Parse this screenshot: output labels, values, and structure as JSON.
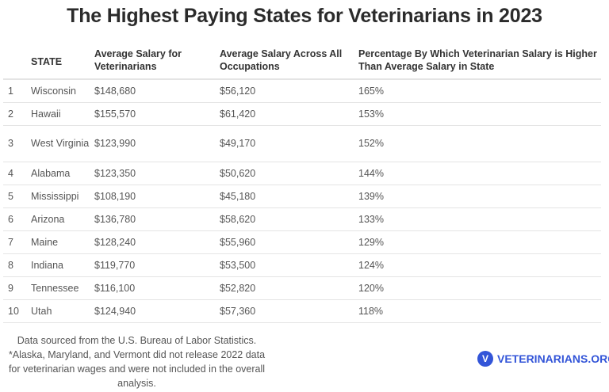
{
  "title": "The Highest Paying States for Veterinarians in 2023",
  "columns": [
    "STATE",
    "Average Salary for Veterinarians",
    "Average Salary Across All Occupations",
    "Percentage By Which Veterinarian Salary is Higher Than Average Salary in State"
  ],
  "rows": [
    {
      "rank": "1",
      "state": "Wisconsin",
      "vet": "$148,680",
      "all": "$56,120",
      "pct": "165%"
    },
    {
      "rank": "2",
      "state": "Hawaii",
      "vet": "$155,570",
      "all": "$61,420",
      "pct": "153%"
    },
    {
      "rank": "3",
      "state": "West Virginia",
      "vet": "$123,990",
      "all": "$49,170",
      "pct": "152%"
    },
    {
      "rank": "4",
      "state": "Alabama",
      "vet": "$123,350",
      "all": "$50,620",
      "pct": "144%"
    },
    {
      "rank": "5",
      "state": "Mississippi",
      "vet": "$108,190",
      "all": "$45,180",
      "pct": "139%"
    },
    {
      "rank": "6",
      "state": "Arizona",
      "vet": "$136,780",
      "all": "$58,620",
      "pct": "133%"
    },
    {
      "rank": "7",
      "state": "Maine",
      "vet": "$128,240",
      "all": "$55,960",
      "pct": "129%"
    },
    {
      "rank": "8",
      "state": "Indiana",
      "vet": "$119,770",
      "all": "$53,500",
      "pct": "124%"
    },
    {
      "rank": "9",
      "state": "Tennessee",
      "vet": "$116,100",
      "all": "$52,820",
      "pct": "120%"
    },
    {
      "rank": "10",
      "state": "Utah",
      "vet": "$124,940",
      "all": "$57,360",
      "pct": "118%"
    }
  ],
  "footnote": "Data sourced from the U.S. Bureau of Labor Statistics. *Alaska, Maryland, and Vermont did not release 2022 data for veterinarian wages and were not included in the overall analysis.",
  "logo": {
    "text": "VETERINARIANS.ORG",
    "icon": "v-shield-icon",
    "color": "#3355d8"
  }
}
